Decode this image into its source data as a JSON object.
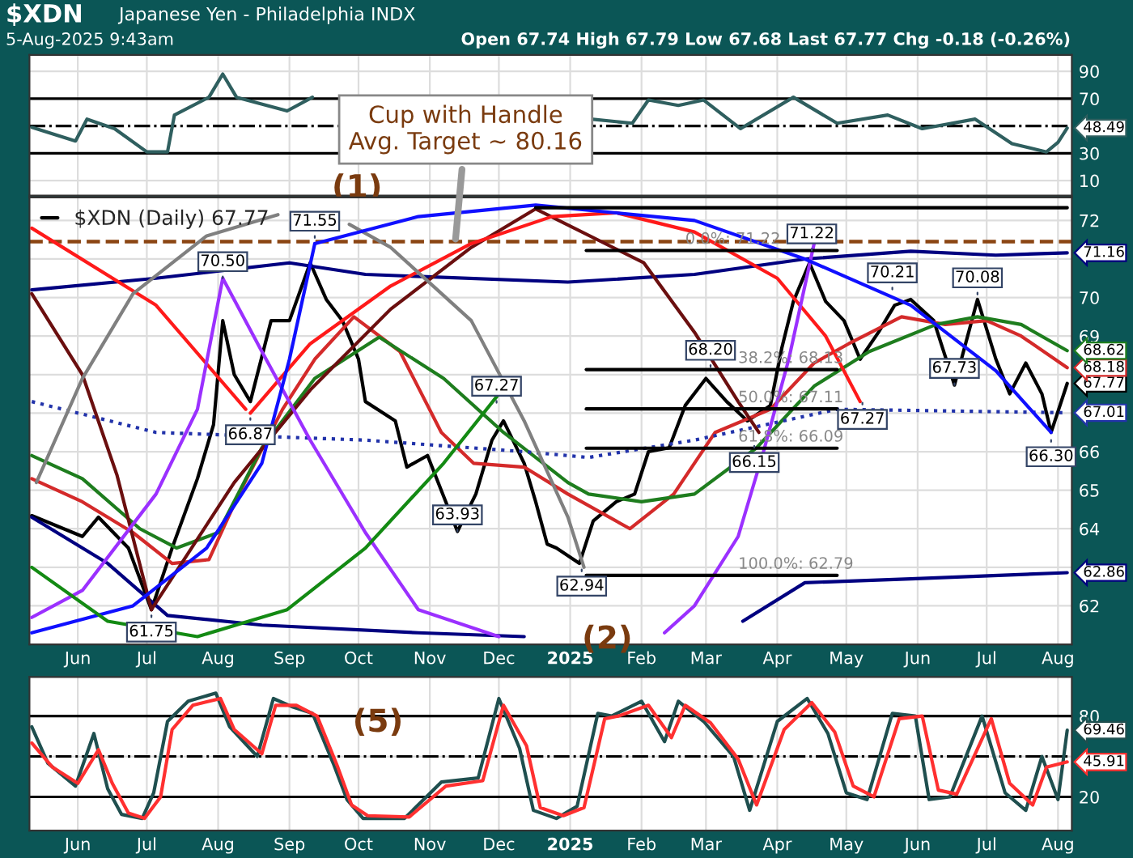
{
  "chart_data": [
    {
      "type": "line",
      "title": "$XDN",
      "subtitle": "Japanese Yen - Philadelphia INDX",
      "annotations": [
        "5-Aug-2025 9:43am",
        "Open 67.74 High 67.79 Low 67.68 Last 67.77 Chg -0.18 (-0.26%)",
        "(1)"
      ],
      "series": [
        {
          "color": "#2f5f5f",
          "value_labels": [
            null,
            null,
            null,
            null,
            null,
            null,
            null,
            null,
            null,
            null,
            null,
            null,
            null,
            null,
            null,
            null,
            null,
            null,
            null,
            null,
            null,
            null,
            null,
            null,
            null,
            null,
            null,
            "48.49"
          ],
          "x": [
            "2024-05-12",
            "2024-05-31",
            "2024-06-05",
            "2024-06-17",
            "2024-07-01",
            "2024-07-10",
            "2024-07-13",
            "2024-07-28",
            "2024-08-03",
            "2024-08-09",
            "2024-08-31",
            "2024-09-11",
            "2024-10-01",
            "2025-01-10",
            "2025-01-28",
            "2025-02-04",
            "2025-02-17",
            "2025-02-28",
            "2025-03-16",
            "2025-04-08",
            "2025-04-27",
            "2025-05-19",
            "2025-06-03",
            "2025-06-26",
            "2025-07-12",
            "2025-07-27",
            "2025-08-01",
            "2025-08-05"
          ],
          "values": [
            49,
            39,
            55,
            48,
            31,
            31,
            58,
            71,
            88,
            71,
            61,
            71,
            null,
            55,
            52,
            69,
            65,
            69,
            48,
            71,
            52,
            58,
            48,
            55,
            37,
            31,
            38,
            48.49
          ]
        }
      ],
      "ref_lines": [
        {
          "axis": "y",
          "value": 70,
          "color": "#000000",
          "line_style": "solid"
        },
        {
          "axis": "y",
          "value": 30,
          "color": "#000000",
          "line_style": "solid"
        },
        {
          "axis": "y",
          "value": 50,
          "color": "#000000",
          "line_style": "dashdot"
        }
      ],
      "xlim": [
        "2024-05-11",
        "2025-08-07"
      ],
      "xticks": [
        {
          "value": "2024-06-01",
          "label": null
        },
        {
          "value": "2024-07-01",
          "label": null
        },
        {
          "value": "2024-08-01",
          "label": null
        },
        {
          "value": "2024-09-01",
          "label": null
        },
        {
          "value": "2024-10-01",
          "label": null
        },
        {
          "value": "2024-11-01",
          "label": null
        },
        {
          "value": "2024-12-01",
          "label": null
        },
        {
          "value": "2025-01-01",
          "label": null
        },
        {
          "value": "2025-02-01",
          "label": null
        },
        {
          "value": "2025-03-01",
          "label": null
        },
        {
          "value": "2025-04-01",
          "label": null
        },
        {
          "value": "2025-05-01",
          "label": null
        },
        {
          "value": "2025-06-01",
          "label": null
        },
        {
          "value": "2025-07-01",
          "label": null
        },
        {
          "value": "2025-08-01",
          "label": null
        }
      ],
      "ylim": [
        -1,
        102
      ],
      "yticks": [
        10,
        30,
        70,
        90
      ],
      "tick_labels": "y",
      "grid": true
    },
    {
      "type": "line",
      "legend": "top left",
      "annotations": [
        {
          "text": "Cup with Handle\nAvg. Target ~ 80.16",
          "x": "2024-11-12",
          "y": 71.4
        },
        "(2)",
        {
          "text": "70.50",
          "x": "2024-08-03",
          "y": 70.5
        },
        {
          "text": "71.55",
          "x": "2024-09-12",
          "y": 71.55
        },
        {
          "text": "66.87",
          "x": "2024-08-15",
          "y": 66.87
        },
        {
          "text": "61.75",
          "x": "2024-07-03",
          "y": 61.75
        },
        {
          "text": "67.27",
          "x": "2024-11-30",
          "y": 67.27
        },
        {
          "text": "63.93",
          "x": "2024-11-13",
          "y": 63.93
        },
        {
          "text": "62.94",
          "x": "2025-01-06",
          "y": 62.94
        },
        {
          "text": "68.20",
          "x": "2025-03-03",
          "y": 68.2
        },
        {
          "text": "66.15",
          "x": "2025-03-22",
          "y": 66.15
        },
        {
          "text": "71.22",
          "x": "2025-04-16",
          "y": 71.22
        },
        {
          "text": "70.21",
          "x": "2025-05-21",
          "y": 70.21
        },
        {
          "text": "67.27",
          "x": "2025-05-08",
          "y": 67.27
        },
        {
          "text": "70.08",
          "x": "2025-06-27",
          "y": 70.08
        },
        {
          "text": "67.73",
          "x": "2025-06-17",
          "y": 67.73
        },
        {
          "text": "66.30",
          "x": "2025-07-29",
          "y": 66.3
        }
      ],
      "series": [
        {
          "name": "$XDN (Daily) 67.77",
          "color": "#000000",
          "x": [
            "2024-05-12",
            "2024-06-03",
            "2024-06-10",
            "2024-06-23",
            "2024-07-03",
            "2024-07-12",
            "2024-07-23",
            "2024-07-30",
            "2024-08-03",
            "2024-08-08",
            "2024-08-15",
            "2024-08-24",
            "2024-09-01",
            "2024-09-10",
            "2024-09-17",
            "2024-09-24",
            "2024-10-01",
            "2024-10-04",
            "2024-10-17",
            "2024-10-22",
            "2024-10-31",
            "2024-11-13",
            "2024-11-21",
            "2024-11-28",
            "2024-12-03",
            "2024-12-12",
            "2024-12-17",
            "2024-12-22",
            "2024-12-26",
            "2025-01-05",
            "2025-01-11",
            "2025-01-21",
            "2025-01-29",
            "2025-02-04",
            "2025-02-13",
            "2025-02-20",
            "2025-03-01",
            "2025-03-10",
            "2025-03-19",
            "2025-03-29",
            "2025-04-03",
            "2025-04-08",
            "2025-04-15",
            "2025-04-22",
            "2025-04-30",
            "2025-05-07",
            "2025-05-15",
            "2025-05-22",
            "2025-05-29",
            "2025-06-08",
            "2025-06-17",
            "2025-06-27",
            "2025-07-05",
            "2025-07-11",
            "2025-07-18",
            "2025-07-25",
            "2025-07-29",
            "2025-08-05"
          ],
          "values": [
            64.34,
            63.8,
            64.3,
            63.5,
            61.9,
            63.5,
            65.3,
            66.7,
            69.4,
            68.0,
            67.3,
            69.4,
            69.4,
            70.9,
            69.95,
            69.4,
            68.4,
            67.3,
            66.8,
            65.6,
            65.9,
            63.93,
            64.9,
            66.3,
            66.8,
            65.7,
            64.7,
            63.6,
            63.5,
            63.1,
            64.2,
            64.7,
            64.9,
            66.0,
            66.1,
            67.2,
            67.9,
            67.3,
            66.8,
            67.2,
            68.7,
            69.9,
            70.9,
            69.9,
            69.4,
            68.4,
            69.1,
            69.8,
            69.95,
            69.4,
            67.73,
            69.95,
            68.4,
            67.5,
            68.3,
            67.5,
            66.5,
            67.77
          ],
          "value_labels": [
            null,
            null,
            null,
            null,
            null,
            null,
            null,
            null,
            null,
            null,
            null,
            null,
            null,
            null,
            null,
            null,
            null,
            null,
            null,
            null,
            null,
            null,
            null,
            null,
            null,
            null,
            null,
            null,
            null,
            null,
            null,
            null,
            null,
            null,
            null,
            null,
            null,
            null,
            null,
            null,
            null,
            null,
            null,
            null,
            null,
            null,
            null,
            null,
            null,
            null,
            null,
            null,
            null,
            null,
            null,
            null,
            null,
            "67.77"
          ]
        },
        {
          "color": "#d42a2a",
          "x": [
            "2024-05-12",
            "2024-06-03",
            "2024-06-25",
            "2024-07-12",
            "2024-07-28",
            "2024-08-10",
            "2024-08-29",
            "2024-09-12",
            "2024-09-29",
            "2024-10-19",
            "2024-11-06",
            "2024-11-20",
            "2024-12-12",
            "2024-12-31",
            "2025-01-27",
            "2025-02-15",
            "2025-03-05",
            "2025-03-29",
            "2025-04-17",
            "2025-05-02",
            "2025-05-25",
            "2025-06-13",
            "2025-07-01",
            "2025-07-16",
            "2025-08-05"
          ],
          "values": [
            65.3,
            64.7,
            63.9,
            63.1,
            63.2,
            64.9,
            67.1,
            68.4,
            69.5,
            68.6,
            66.5,
            65.7,
            65.6,
            64.9,
            64.0,
            64.9,
            66.5,
            67.1,
            68.3,
            68.8,
            69.5,
            69.3,
            69.4,
            69.0,
            68.18
          ],
          "value_labels": [
            null,
            null,
            null,
            null,
            null,
            null,
            null,
            null,
            null,
            null,
            null,
            null,
            null,
            null,
            null,
            null,
            null,
            null,
            null,
            null,
            null,
            null,
            null,
            null,
            "68.18"
          ]
        },
        {
          "color": "#1e7d1e",
          "x": [
            "2024-05-12",
            "2024-06-03",
            "2024-06-28",
            "2024-07-14",
            "2024-08-01",
            "2024-08-20",
            "2024-09-12",
            "2024-10-10",
            "2024-11-07",
            "2024-12-03",
            "2024-12-31",
            "2025-01-09",
            "2025-02-01",
            "2025-02-24",
            "2025-03-23",
            "2025-04-17",
            "2025-05-11",
            "2025-06-09",
            "2025-06-27",
            "2025-07-16",
            "2025-08-05"
          ],
          "values": [
            65.9,
            65.3,
            64.0,
            63.5,
            63.9,
            66.1,
            67.9,
            68.97,
            67.9,
            66.5,
            65.2,
            64.9,
            64.7,
            64.9,
            66.1,
            67.7,
            68.6,
            69.3,
            69.5,
            69.3,
            68.62
          ],
          "value_labels": [
            null,
            null,
            null,
            null,
            null,
            null,
            null,
            null,
            null,
            null,
            null,
            null,
            null,
            null,
            null,
            null,
            null,
            null,
            null,
            null,
            "68.62"
          ]
        },
        {
          "color": "#000080",
          "x": [
            "2024-05-12",
            "2024-07-05",
            "2024-09-01",
            "2024-10-04",
            "2024-12-31",
            "2025-02-24",
            "2025-04-13",
            "2025-05-29",
            "2025-07-05",
            "2025-08-05"
          ],
          "values": [
            70.2,
            70.5,
            70.9,
            70.6,
            70.4,
            70.6,
            71.0,
            71.2,
            71.1,
            71.16
          ],
          "value_labels": [
            null,
            null,
            null,
            null,
            null,
            null,
            null,
            null,
            null,
            "71.16"
          ]
        },
        {
          "color": "#2233aa",
          "line_style": "dotted",
          "x": [
            "2024-05-12",
            "2024-07-05",
            "2024-10-04",
            "2024-12-12",
            "2025-01-09",
            "2025-02-24",
            "2025-04-27",
            "2025-08-05"
          ],
          "values": [
            67.3,
            66.5,
            66.3,
            66.0,
            65.85,
            66.3,
            67.1,
            67.01
          ],
          "value_labels": [
            null,
            null,
            null,
            null,
            null,
            null,
            null,
            "67.01"
          ]
        },
        {
          "color": "#000080",
          "x": [
            "2024-05-12",
            "2024-06-14",
            "2024-07-10",
            "2024-08-20",
            "2024-10-27",
            "2024-12-12",
            "2025-01-15",
            "2025-03-17",
            "2025-04-13",
            "2025-05-29",
            "2025-08-05"
          ],
          "values": [
            64.3,
            63.1,
            61.75,
            61.5,
            61.3,
            61.2,
            null,
            61.6,
            62.6,
            62.7,
            62.86
          ],
          "value_labels": [
            null,
            null,
            null,
            null,
            null,
            null,
            null,
            null,
            null,
            null,
            "62.86"
          ]
        },
        {
          "color": "#6b0f0f",
          "x": [
            "2024-05-12",
            "2024-06-03",
            "2024-06-18",
            "2024-07-03"
          ],
          "values": [
            70.1,
            68.0,
            65.4,
            61.9
          ]
        },
        {
          "color": "#6b0f0f",
          "x": [
            "2024-07-03",
            "2024-08-08",
            "2024-09-10",
            "2024-10-15",
            "2024-11-19",
            "2024-12-17",
            "2025-02-02",
            "2025-02-24",
            "2025-03-15",
            "2025-03-24"
          ],
          "values": [
            61.9,
            65.2,
            67.6,
            69.7,
            71.3,
            72.3,
            70.9,
            69.1,
            67.3,
            66.5
          ]
        },
        {
          "color": "#ff1a1a",
          "x": [
            "2024-05-12",
            "2024-07-05",
            "2024-08-13"
          ],
          "values": [
            71.8,
            69.8,
            67.1
          ]
        },
        {
          "color": "#ff1a1a",
          "x": [
            "2024-08-15",
            "2024-09-10",
            "2024-10-15",
            "2024-11-19",
            "2024-12-24",
            "2025-01-21",
            "2025-02-24",
            "2025-04-01",
            "2025-04-22",
            "2025-05-07"
          ],
          "values": [
            67.0,
            68.8,
            70.3,
            71.4,
            72.1,
            72.2,
            71.7,
            70.5,
            69.0,
            67.3
          ]
        },
        {
          "color": "#808080",
          "x": [
            "2024-05-14",
            "2024-06-03",
            "2024-06-25",
            "2024-07-27",
            "2024-08-27",
            "2024-09-12",
            "2024-09-27",
            "2024-10-15",
            "2024-11-19",
            "2024-12-12",
            "2024-12-31",
            "2025-01-07"
          ],
          "values": [
            65.2,
            67.9,
            70.1,
            71.6,
            72.15,
            null,
            71.9,
            71.3,
            69.4,
            66.8,
            64.3,
            63.0
          ]
        },
        {
          "color": "#9b30ff",
          "x": [
            "2024-05-12",
            "2024-06-03",
            "2024-07-05",
            "2024-07-23",
            "2024-08-03"
          ],
          "values": [
            61.7,
            62.4,
            64.9,
            67.1,
            70.5
          ]
        },
        {
          "color": "#9b30ff",
          "x": [
            "2024-08-03",
            "2024-08-20",
            "2024-09-10",
            "2024-10-04",
            "2024-10-27",
            "2024-12-01"
          ],
          "values": [
            70.5,
            68.6,
            66.3,
            63.9,
            61.9,
            61.2
          ]
        },
        {
          "color": "#9b30ff",
          "x": [
            "2025-02-11",
            "2025-02-24",
            "2025-03-15",
            "2025-03-26",
            "2025-04-06",
            "2025-04-17"
          ],
          "values": [
            61.3,
            62.0,
            63.8,
            66.0,
            68.4,
            71.4
          ]
        },
        {
          "color": "#1010ff",
          "x": [
            "2024-05-12",
            "2024-06-25",
            "2024-07-27",
            "2024-08-20",
            "2024-09-01",
            "2024-09-12"
          ],
          "values": [
            61.3,
            62.0,
            63.5,
            65.7,
            68.4,
            71.4
          ]
        },
        {
          "color": "#1010ff",
          "x": [
            "2024-09-12",
            "2024-10-27",
            "2024-12-17",
            "2025-02-24",
            "2025-04-13",
            "2025-05-29",
            "2025-07-05",
            "2025-07-29"
          ],
          "values": [
            71.4,
            72.1,
            72.4,
            72.0,
            71.0,
            69.8,
            68.1,
            66.5
          ]
        },
        {
          "color": "#138a13",
          "x": [
            "2024-05-12",
            "2024-06-14",
            "2024-07-23",
            "2024-08-31",
            "2024-10-04",
            "2024-11-07",
            "2024-12-01"
          ],
          "values": [
            63.0,
            61.6,
            61.2,
            61.9,
            63.5,
            65.7,
            67.5
          ]
        },
        {
          "color": "#000000",
          "x": [
            "2024-12-17",
            "2025-04-12",
            "2025-08-05"
          ],
          "values": [
            72.33,
            72.33,
            72.33
          ]
        },
        {
          "color": "#000000",
          "x": [
            "2025-01-08",
            "2025-02-20",
            "2025-04-27"
          ],
          "values": [
            71.22,
            71.22,
            71.22
          ],
          "value_labels": [
            null,
            "0.0%: 71.22",
            null
          ]
        },
        {
          "color": "#000000",
          "x": [
            "2025-01-08",
            "2025-03-15",
            "2025-04-27"
          ],
          "values": [
            68.13,
            68.13,
            68.13
          ],
          "value_labels": [
            null,
            "38.2%: 68.13",
            null
          ]
        },
        {
          "color": "#000000",
          "x": [
            "2025-01-08",
            "2025-03-15",
            "2025-04-27"
          ],
          "values": [
            67.11,
            67.11,
            67.11
          ],
          "value_labels": [
            null,
            "50.0%: 67.11",
            null
          ]
        },
        {
          "color": "#000000",
          "x": [
            "2025-01-08",
            "2025-03-15",
            "2025-04-27"
          ],
          "values": [
            66.09,
            66.09,
            66.09
          ],
          "value_labels": [
            null,
            "61.8%: 66.09",
            null
          ]
        },
        {
          "color": "#000000",
          "x": [
            "2025-01-08",
            "2025-03-15",
            "2025-04-27"
          ],
          "values": [
            62.79,
            62.79,
            62.79
          ],
          "value_labels": [
            null,
            "100.0%: 62.79",
            null
          ]
        }
      ],
      "ref_lines": [
        {
          "axis": "y",
          "value": 71.45,
          "color": "#8b4513",
          "line_style": "dashed"
        }
      ],
      "xlim": [
        "2024-05-11",
        "2025-08-07"
      ],
      "xticks": [
        {
          "value": "2024-06-01",
          "label": "Jun"
        },
        {
          "value": "2024-07-01",
          "label": "Jul"
        },
        {
          "value": "2024-08-01",
          "label": "Aug"
        },
        {
          "value": "2024-09-01",
          "label": "Sep"
        },
        {
          "value": "2024-10-01",
          "label": "Oct"
        },
        {
          "value": "2024-11-01",
          "label": "Nov"
        },
        {
          "value": "2024-12-01",
          "label": "Dec"
        },
        {
          "value": "2025-01-01",
          "label": "2025"
        },
        {
          "value": "2025-02-01",
          "label": "Feb"
        },
        {
          "value": "2025-03-01",
          "label": "Mar"
        },
        {
          "value": "2025-04-01",
          "label": "Apr"
        },
        {
          "value": "2025-05-01",
          "label": "May"
        },
        {
          "value": "2025-06-01",
          "label": "Jun"
        },
        {
          "value": "2025-07-01",
          "label": "Jul"
        },
        {
          "value": "2025-08-01",
          "label": "Aug"
        }
      ],
      "ylim": [
        61.0,
        72.6
      ],
      "yticks": [
        62,
        {
          "value": 63,
          "label": null
        },
        64,
        65,
        66,
        {
          "value": 67,
          "label": null
        },
        {
          "value": 68,
          "label": null
        },
        69,
        70,
        {
          "value": 71,
          "label": null
        },
        72
      ],
      "grid": true
    },
    {
      "type": "line",
      "annotations": [
        "(5)"
      ],
      "series": [
        {
          "color": "#1f4f4f",
          "x": [
            "2024-05-12",
            "2024-05-19",
            "2024-05-31",
            "2024-06-08",
            "2024-06-14",
            "2024-06-20",
            "2024-06-29",
            "2024-07-04",
            "2024-07-10",
            "2024-07-19",
            "2024-07-31",
            "2024-08-06",
            "2024-08-18",
            "2024-08-25",
            "2024-09-02",
            "2024-09-11",
            "2024-09-20",
            "2024-09-26",
            "2024-10-03",
            "2024-10-21",
            "2024-11-06",
            "2024-11-22",
            "2024-12-01",
            "2024-12-10",
            "2024-12-16",
            "2024-12-26",
            "2025-01-04",
            "2025-01-13",
            "2025-01-19",
            "2025-02-01",
            "2025-02-11",
            "2025-02-17",
            "2025-02-28",
            "2025-03-13",
            "2025-03-20",
            "2025-04-01",
            "2025-04-14",
            "2025-04-23",
            "2025-05-01",
            "2025-05-10",
            "2025-05-21",
            "2025-05-31",
            "2025-06-06",
            "2025-06-15",
            "2025-06-29",
            "2025-07-09",
            "2025-07-18",
            "2025-07-25",
            "2025-08-01",
            "2025-08-05"
          ],
          "values": [
            72,
            45,
            28,
            67,
            26,
            7,
            4,
            23,
            76,
            91,
            97,
            72,
            50,
            93,
            87,
            82,
            45,
            18,
            4,
            4,
            31,
            34,
            93,
            56,
            10,
            4,
            13,
            82,
            80,
            91,
            61,
            91,
            76,
            50,
            10,
            76,
            93,
            67,
            23,
            18,
            82,
            80,
            18,
            20,
            80,
            23,
            10,
            50,
            18,
            69.46
          ],
          "value_labels": [
            null,
            null,
            null,
            null,
            null,
            null,
            null,
            null,
            null,
            null,
            null,
            null,
            null,
            null,
            null,
            null,
            null,
            null,
            null,
            null,
            null,
            null,
            null,
            null,
            null,
            null,
            null,
            null,
            null,
            null,
            null,
            null,
            null,
            null,
            null,
            null,
            null,
            null,
            null,
            null,
            null,
            null,
            null,
            null,
            null,
            null,
            null,
            null,
            null,
            "69.46"
          ]
        },
        {
          "color": "#ff3030",
          "x": [
            "2024-05-12",
            "2024-05-21",
            "2024-06-01",
            "2024-06-10",
            "2024-06-16",
            "2024-06-23",
            "2024-06-30",
            "2024-07-07",
            "2024-07-12",
            "2024-07-21",
            "2024-08-02",
            "2024-08-08",
            "2024-08-20",
            "2024-08-26",
            "2024-09-04",
            "2024-09-13",
            "2024-09-22",
            "2024-09-28",
            "2024-10-05",
            "2024-10-23",
            "2024-11-08",
            "2024-11-24",
            "2024-12-03",
            "2024-12-13",
            "2024-12-19",
            "2024-12-29",
            "2025-01-07",
            "2025-01-16",
            "2025-01-22",
            "2025-02-04",
            "2025-02-14",
            "2025-02-20",
            "2025-03-03",
            "2025-03-15",
            "2025-03-23",
            "2025-04-04",
            "2025-04-16",
            "2025-04-26",
            "2025-05-04",
            "2025-05-13",
            "2025-05-24",
            "2025-06-03",
            "2025-06-10",
            "2025-06-18",
            "2025-07-03",
            "2025-07-11",
            "2025-07-21",
            "2025-07-27",
            "2025-08-05"
          ],
          "values": [
            60,
            42,
            30,
            55,
            30,
            8,
            4,
            20,
            70,
            88,
            93,
            70,
            52,
            88,
            88,
            80,
            42,
            14,
            6,
            5,
            28,
            32,
            88,
            58,
            12,
            6,
            12,
            78,
            80,
            88,
            64,
            88,
            75,
            48,
            14,
            70,
            90,
            68,
            28,
            20,
            78,
            80,
            25,
            22,
            78,
            30,
            14,
            42,
            45.91
          ],
          "value_labels": [
            null,
            null,
            null,
            null,
            null,
            null,
            null,
            null,
            null,
            null,
            null,
            null,
            null,
            null,
            null,
            null,
            null,
            null,
            null,
            null,
            null,
            null,
            null,
            null,
            null,
            null,
            null,
            null,
            null,
            null,
            null,
            null,
            null,
            null,
            null,
            null,
            null,
            null,
            null,
            null,
            null,
            null,
            null,
            null,
            null,
            null,
            null,
            null,
            "45.91"
          ]
        }
      ],
      "ref_lines": [
        {
          "axis": "y",
          "value": 80,
          "color": "#000000",
          "line_style": "solid"
        },
        {
          "axis": "y",
          "value": 20,
          "color": "#000000",
          "line_style": "solid"
        },
        {
          "axis": "y",
          "value": 50,
          "color": "#000000",
          "line_style": "dashdot"
        }
      ],
      "xlim": [
        "2024-05-11",
        "2025-08-07"
      ],
      "xticks": [
        {
          "value": "2024-06-01",
          "label": "Jun"
        },
        {
          "value": "2024-07-01",
          "label": "Jul"
        },
        {
          "value": "2024-08-01",
          "label": "Aug"
        },
        {
          "value": "2024-09-01",
          "label": "Sep"
        },
        {
          "value": "2024-10-01",
          "label": "Oct"
        },
        {
          "value": "2024-11-01",
          "label": "Nov"
        },
        {
          "value": "2024-12-01",
          "label": "Dec"
        },
        {
          "value": "2025-01-01",
          "label": "2025"
        },
        {
          "value": "2025-02-01",
          "label": "Feb"
        },
        {
          "value": "2025-03-01",
          "label": "Mar"
        },
        {
          "value": "2025-04-01",
          "label": "Apr"
        },
        {
          "value": "2025-05-01",
          "label": "May"
        },
        {
          "value": "2025-06-01",
          "label": "Jun"
        },
        {
          "value": "2025-07-01",
          "label": "Jul"
        },
        {
          "value": "2025-08-01",
          "label": "Aug"
        }
      ],
      "ylim": [
        -5,
        109
      ],
      "yticks": [
        20,
        {
          "value": 50,
          "label": null
        },
        80
      ],
      "grid": true
    }
  ]
}
